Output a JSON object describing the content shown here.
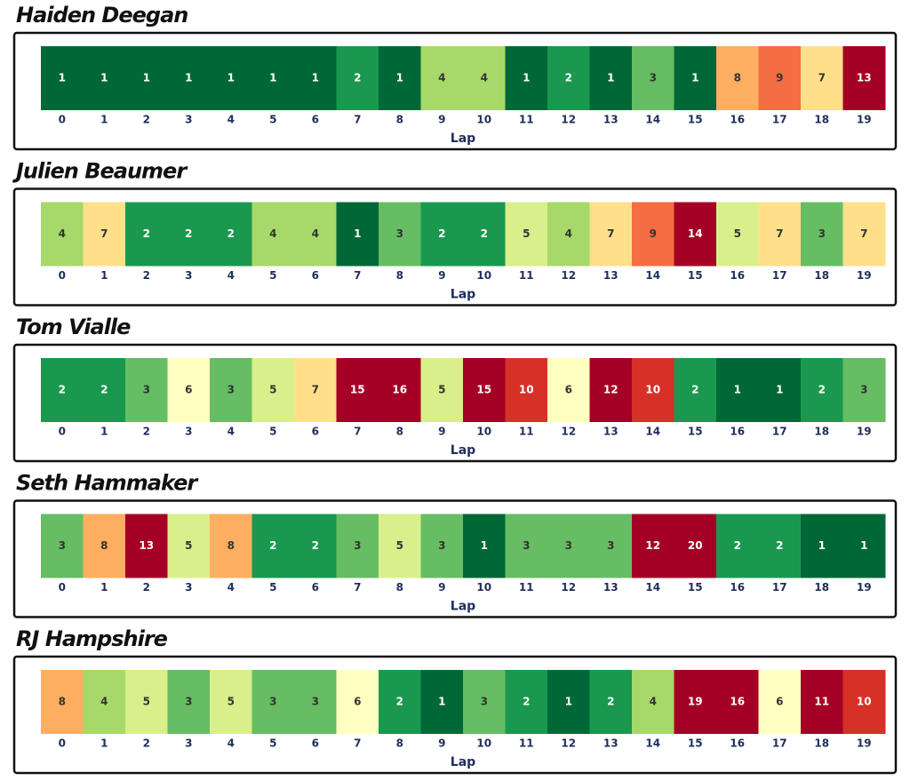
{
  "chart_data": [
    {
      "type": "heatmap",
      "title": "Haiden Deegan",
      "xlabel": "Lap",
      "categories": [
        0,
        1,
        2,
        3,
        4,
        5,
        6,
        7,
        8,
        9,
        10,
        11,
        12,
        13,
        14,
        15,
        16,
        17,
        18,
        19
      ],
      "values": [
        1,
        1,
        1,
        1,
        1,
        1,
        1,
        2,
        1,
        4,
        4,
        1,
        2,
        1,
        3,
        1,
        8,
        9,
        7,
        13
      ],
      "colors": [
        "#006837",
        "#1a9850",
        "#66bd63",
        "#a6d96a",
        "#d9ef8b",
        "#ffffbf",
        "#fee08b",
        "#fdae61",
        "#f46d43",
        "#d73027",
        "#a50026"
      ]
    },
    {
      "type": "heatmap",
      "title": "Julien Beaumer",
      "xlabel": "Lap",
      "categories": [
        0,
        1,
        2,
        3,
        4,
        5,
        6,
        7,
        8,
        9,
        10,
        11,
        12,
        13,
        14,
        15,
        16,
        17,
        18,
        19
      ],
      "values": [
        4,
        7,
        2,
        2,
        2,
        4,
        4,
        1,
        3,
        2,
        2,
        5,
        4,
        7,
        9,
        14,
        5,
        7,
        3,
        7
      ],
      "colors": [
        "#006837",
        "#1a9850",
        "#66bd63",
        "#a6d96a",
        "#d9ef8b",
        "#ffffbf",
        "#fee08b",
        "#fdae61",
        "#f46d43",
        "#d73027",
        "#a50026"
      ]
    },
    {
      "type": "heatmap",
      "title": "Tom Vialle",
      "xlabel": "Lap",
      "categories": [
        0,
        1,
        2,
        3,
        4,
        5,
        6,
        7,
        8,
        9,
        10,
        11,
        12,
        13,
        14,
        15,
        16,
        17,
        18,
        19
      ],
      "values": [
        2,
        2,
        3,
        6,
        3,
        5,
        7,
        15,
        16,
        5,
        15,
        10,
        6,
        12,
        10,
        2,
        1,
        1,
        2,
        3
      ],
      "colors": [
        "#006837",
        "#1a9850",
        "#66bd63",
        "#a6d96a",
        "#d9ef8b",
        "#ffffbf",
        "#fee08b",
        "#fdae61",
        "#f46d43",
        "#d73027",
        "#a50026"
      ]
    },
    {
      "type": "heatmap",
      "title": "Seth Hammaker",
      "xlabel": "Lap",
      "categories": [
        0,
        1,
        2,
        3,
        4,
        5,
        6,
        7,
        8,
        9,
        10,
        11,
        12,
        13,
        14,
        15,
        16,
        17,
        18,
        19
      ],
      "values": [
        3,
        8,
        13,
        5,
        8,
        2,
        2,
        3,
        5,
        3,
        1,
        3,
        3,
        3,
        12,
        20,
        2,
        2,
        1,
        1
      ],
      "colors": [
        "#006837",
        "#1a9850",
        "#66bd63",
        "#a6d96a",
        "#d9ef8b",
        "#ffffbf",
        "#fee08b",
        "#fdae61",
        "#f46d43",
        "#d73027",
        "#a50026"
      ]
    },
    {
      "type": "heatmap",
      "title": "RJ Hampshire",
      "xlabel": "Lap",
      "categories": [
        0,
        1,
        2,
        3,
        4,
        5,
        6,
        7,
        8,
        9,
        10,
        11,
        12,
        13,
        14,
        15,
        16,
        17,
        18,
        19
      ],
      "values": [
        8,
        4,
        5,
        3,
        5,
        3,
        3,
        6,
        2,
        1,
        3,
        2,
        1,
        2,
        4,
        19,
        16,
        6,
        11,
        10
      ],
      "colors": [
        "#006837",
        "#1a9850",
        "#66bd63",
        "#a6d96a",
        "#d9ef8b",
        "#ffffbf",
        "#fee08b",
        "#fdae61",
        "#f46d43",
        "#d73027",
        "#a50026"
      ]
    }
  ]
}
